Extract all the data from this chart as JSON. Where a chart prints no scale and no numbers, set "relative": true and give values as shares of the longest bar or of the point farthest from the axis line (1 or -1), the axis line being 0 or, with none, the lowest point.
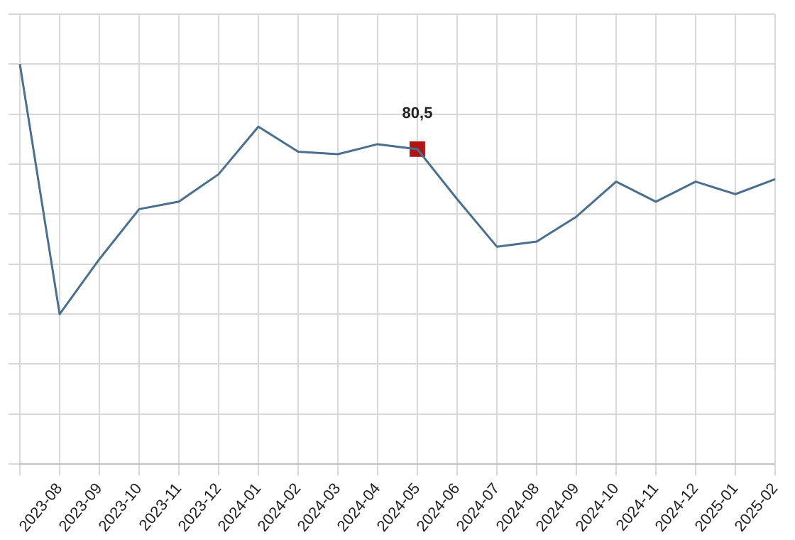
{
  "chart_data": {
    "type": "line",
    "relative": true,
    "grid": true,
    "legend": false,
    "tick_labels": "x",
    "categories": [
      null,
      "2023-08",
      "2023-09",
      "2023-10",
      "2023-11",
      "2023-12",
      "2024-01",
      "2024-02",
      "2024-03",
      "2024-04",
      "2024-05",
      "2024-06",
      "2024-07",
      "2024-08",
      "2024-09",
      "2024-10",
      "2024-11",
      "2024-12",
      "2025-01",
      "2025-02"
    ],
    "annotations": [
      "80,5"
    ],
    "series": [
      {
        "color": "#4a6f8f",
        "marker": "none",
        "values": [
          1.0,
          0,
          0.22,
          0.42,
          0.45,
          0.56,
          0.75,
          0.65,
          0.64,
          0.68,
          0.66,
          0.46,
          0.27,
          0.29,
          0.39,
          0.53,
          0.45,
          0.53,
          0.48,
          0.54
        ]
      },
      {
        "type": "scatter",
        "color": "#b01515",
        "marker": "square",
        "values": [
          null,
          null,
          null,
          null,
          null,
          null,
          null,
          null,
          null,
          null,
          0.66,
          null,
          null,
          null,
          null,
          null,
          null,
          null,
          null,
          null
        ]
      }
    ]
  }
}
